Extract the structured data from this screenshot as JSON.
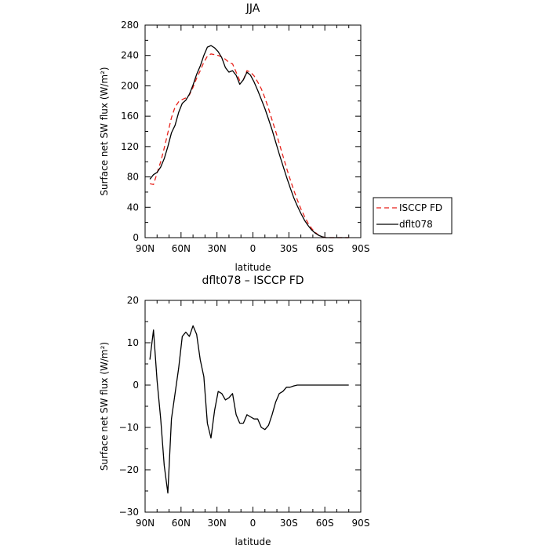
{
  "chart_data": [
    {
      "type": "line",
      "title": "JJA",
      "xlabel": "latitude",
      "ylabel": "Surface net SW flux (W/m²)",
      "xlim": [
        90,
        -90
      ],
      "ylim": [
        0,
        280
      ],
      "xticks": [
        90,
        60,
        30,
        0,
        -30,
        -60,
        -90
      ],
      "xtick_labels": [
        "90N",
        "60N",
        "30N",
        "0",
        "30S",
        "60S",
        "90S"
      ],
      "yticks": [
        0,
        40,
        80,
        120,
        160,
        200,
        240,
        280
      ],
      "ytick_labels": [
        "0",
        "40",
        "80",
        "120",
        "160",
        "200",
        "240",
        "280"
      ],
      "grid": false,
      "legend": "right, outside plot",
      "series": [
        {
          "name": "ISCCP FD",
          "color": "#e8221b",
          "dash": "dashed",
          "x": [
            86,
            83,
            80,
            77,
            74,
            71,
            68,
            65,
            62,
            59,
            56,
            53,
            50,
            47,
            44,
            41,
            38,
            35,
            32,
            29,
            26,
            23,
            20,
            17,
            14,
            11,
            8,
            5,
            2,
            -1,
            -4,
            -7,
            -10,
            -13,
            -16,
            -19,
            -22,
            -25,
            -28,
            -31,
            -34,
            -37,
            -40,
            -43,
            -46,
            -49,
            -52,
            -55,
            -58,
            -61,
            -64,
            -67,
            -70,
            -73,
            -76,
            -80
          ],
          "y": [
            71,
            70,
            85,
            100,
            118,
            138,
            158,
            172,
            179,
            182,
            184,
            188,
            198,
            210,
            220,
            231,
            239,
            242,
            241,
            240,
            238,
            235,
            231,
            229,
            218,
            207,
            208,
            220,
            218,
            213,
            205,
            196,
            184,
            170,
            155,
            140,
            124,
            108,
            92,
            77,
            63,
            50,
            38,
            28,
            19,
            12,
            7,
            3,
            1,
            0,
            0,
            0,
            0,
            0,
            0,
            0
          ]
        },
        {
          "name": "dflt078",
          "color": "#000000",
          "dash": "solid",
          "x": [
            86,
            83,
            80,
            77,
            74,
            71,
            68,
            65,
            62,
            59,
            56,
            53,
            50,
            47,
            44,
            41,
            38,
            35,
            32,
            29,
            26,
            23,
            20,
            17,
            14,
            11,
            8,
            5,
            2,
            -1,
            -4,
            -7,
            -10,
            -13,
            -16,
            -19,
            -22,
            -25,
            -28,
            -31,
            -34,
            -37,
            -40,
            -43,
            -46,
            -49,
            -52,
            -55,
            -58,
            -61,
            -64,
            -67,
            -70,
            -73,
            -76,
            -80
          ],
          "y": [
            77,
            83,
            86,
            93,
            104,
            120,
            138,
            148,
            165,
            177,
            181,
            189,
            201,
            215,
            226,
            240,
            251,
            253,
            250,
            245,
            237,
            224,
            218,
            220,
            214,
            202,
            208,
            218,
            214,
            205,
            194,
            182,
            170,
            156,
            142,
            126,
            110,
            95,
            80,
            66,
            53,
            42,
            32,
            23,
            16,
            10,
            6,
            3,
            1,
            0,
            0,
            0,
            0,
            0,
            0,
            0
          ]
        }
      ]
    },
    {
      "type": "line",
      "title": "dflt078 – ISCCP FD",
      "xlabel": "latitude",
      "ylabel": "Surface net SW flux (W/m²)",
      "xlim": [
        90,
        -90
      ],
      "ylim": [
        -30,
        20
      ],
      "xticks": [
        90,
        60,
        30,
        0,
        -30,
        -60,
        -90
      ],
      "xtick_labels": [
        "90N",
        "60N",
        "30N",
        "0",
        "30S",
        "60S",
        "90S"
      ],
      "yticks": [
        -30,
        -20,
        -10,
        0,
        10,
        20
      ],
      "ytick_labels": [
        "−30",
        "−20",
        "−10",
        "0",
        "10",
        "20"
      ],
      "grid": false,
      "series": [
        {
          "color": "#000000",
          "dash": "solid",
          "x": [
            86,
            83,
            80,
            77,
            74,
            71,
            68,
            65,
            62,
            59,
            56,
            53,
            50,
            47,
            44,
            41,
            38,
            35,
            32,
            29,
            26,
            23,
            20,
            17,
            14,
            11,
            8,
            5,
            2,
            -1,
            -4,
            -7,
            -10,
            -13,
            -16,
            -19,
            -22,
            -25,
            -28,
            -31,
            -34,
            -37,
            -40,
            -43,
            -46,
            -49,
            -52,
            -55,
            -58,
            -61,
            -64,
            -67,
            -70,
            -73,
            -76,
            -80
          ],
          "y": [
            6,
            13,
            1,
            -8,
            -19,
            -25.5,
            -8,
            -2,
            4,
            11.5,
            12.5,
            11.5,
            14,
            12,
            6,
            2,
            -9,
            -12.5,
            -6,
            -1.5,
            -2,
            -3.5,
            -3,
            -2,
            -7,
            -9,
            -9,
            -7,
            -7.5,
            -8,
            -8,
            -10,
            -10.5,
            -9.5,
            -7,
            -4,
            -2,
            -1.5,
            -0.5,
            -0.5,
            -0.2,
            0,
            0,
            0,
            0,
            0,
            0,
            0,
            0,
            0,
            0,
            0,
            0,
            0,
            0,
            0
          ]
        }
      ]
    }
  ]
}
